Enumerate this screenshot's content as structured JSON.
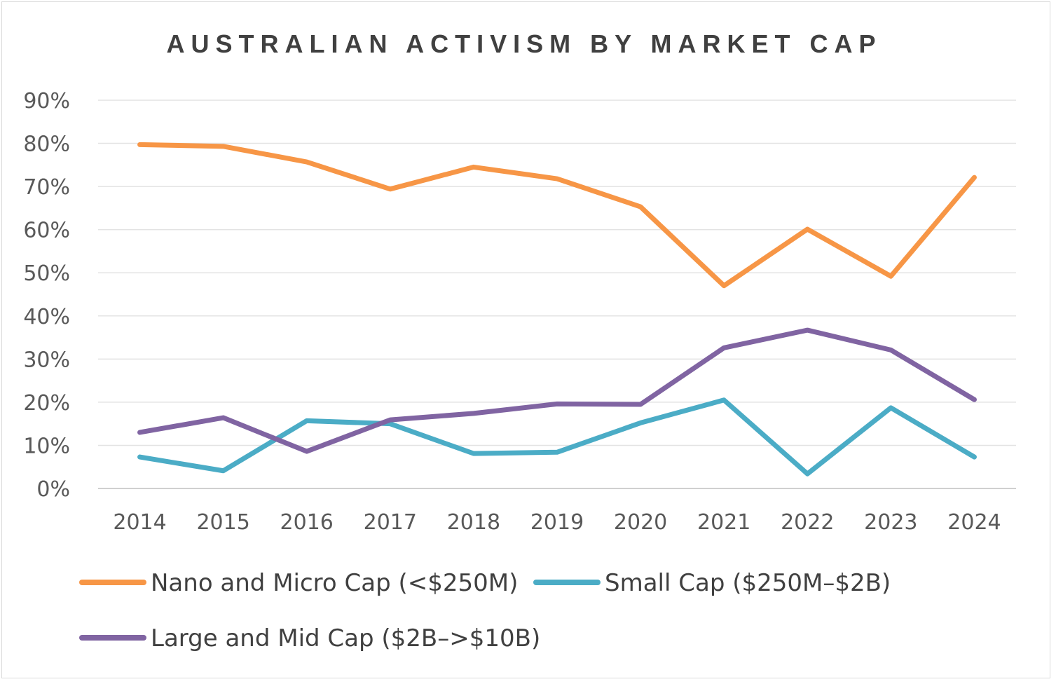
{
  "chart_data": {
    "type": "line",
    "title": "AUSTRALIAN ACTIVISM BY MARKET CAP",
    "xlabel": "",
    "ylabel": "",
    "categories": [
      "2014",
      "2015",
      "2016",
      "2017",
      "2018",
      "2019",
      "2020",
      "2021",
      "2022",
      "2023",
      "2024"
    ],
    "y_ticks": [
      "0%",
      "10%",
      "20%",
      "30%",
      "40%",
      "50%",
      "60%",
      "70%",
      "80%",
      "90%"
    ],
    "ylim": [
      0,
      0.9
    ],
    "grid": true,
    "legend_position": "bottom",
    "series": [
      {
        "name": "Nano and Micro Cap (<$250M)",
        "color": "#F79646",
        "values": [
          0.797,
          0.793,
          0.757,
          0.694,
          0.745,
          0.718,
          0.653,
          0.47,
          0.601,
          0.492,
          0.721
        ]
      },
      {
        "name": "Small Cap ($250M–$2B)",
        "color": "#4BACC6",
        "values": [
          0.073,
          0.041,
          0.157,
          0.15,
          0.081,
          0.084,
          0.152,
          0.205,
          0.034,
          0.187,
          0.073
        ]
      },
      {
        "name": "Large and Mid Cap ($2B–>$10B)",
        "color": "#8064A2",
        "values": [
          0.13,
          0.164,
          0.086,
          0.159,
          0.174,
          0.196,
          0.195,
          0.326,
          0.367,
          0.321,
          0.206
        ]
      }
    ]
  }
}
